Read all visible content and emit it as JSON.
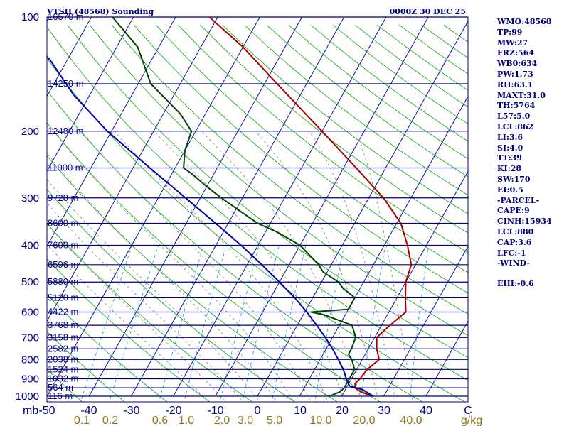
{
  "header": {
    "station": "VTSH (48568) Sounding",
    "time": "0000Z 30 DEC 25"
  },
  "indices": [
    "WMO:48568",
    "TP:99",
    "MW:27",
    "FRZ:564",
    "WB0:634",
    "PW:1.73",
    "RH:63.1",
    "MAXT:31.0",
    "TH:5764",
    "L57:5.0",
    "LCL:862",
    "LI:3.6",
    "SI:4.0",
    "TT:39",
    "KI:28",
    "SW:170",
    "EI:0.5",
    "-PARCEL-",
    "CAPE:9",
    "CINH:15934",
    "LCL:880",
    "CAP:3.6",
    "LFC:-1",
    "-WIND-",
    "",
    "EHI:-0.6"
  ],
  "chart_data": {
    "type": "skew-t",
    "pressure_unit": "mb",
    "pressure_range": [
      1000,
      100
    ],
    "temperature_range": [
      -50,
      50
    ],
    "pressure_levels": [
      {
        "p": 100,
        "label": "100",
        "height": "16570 m"
      },
      {
        "p": 150,
        "label": "",
        "height": "14250 m"
      },
      {
        "p": 200,
        "label": "200",
        "height": "12480 m"
      },
      {
        "p": 250,
        "label": "",
        "height": "11000 m"
      },
      {
        "p": 300,
        "label": "300",
        "height": "9720 m"
      },
      {
        "p": 350,
        "label": "",
        "height": "8600 m"
      },
      {
        "p": 400,
        "label": "400",
        "height": "7600 m"
      },
      {
        "p": 450,
        "label": "",
        "height": "6596 m"
      },
      {
        "p": 500,
        "label": "500",
        "height": "5880 m"
      },
      {
        "p": 550,
        "label": "",
        "height": "5120 m"
      },
      {
        "p": 600,
        "label": "600",
        "height": "4422 m"
      },
      {
        "p": 650,
        "label": "",
        "height": "3768 m"
      },
      {
        "p": 700,
        "label": "700",
        "height": "3158 m"
      },
      {
        "p": 750,
        "label": "",
        "height": "2582 m"
      },
      {
        "p": 800,
        "label": "800",
        "height": "2038 m"
      },
      {
        "p": 850,
        "label": "",
        "height": "1524 m"
      },
      {
        "p": 900,
        "label": "900",
        "height": "1032 m"
      },
      {
        "p": 950,
        "label": "",
        "height": "564 m"
      },
      {
        "p": 1000,
        "label": "1000",
        "height": "116 m"
      }
    ],
    "x_axis_label": "mb",
    "temperature_ticks": [
      "-50",
      "-40",
      "-30",
      "-20",
      "-10",
      "0",
      "10",
      "20",
      "30",
      "40",
      "C"
    ],
    "mixing_ratio_ticks": [
      "0.1",
      "0.2",
      "0.6",
      "1.0",
      "2.0",
      "3.0",
      "5.0",
      "10.0",
      "20.0",
      "40.0",
      "g/kg"
    ],
    "series": [
      {
        "name": "temperature",
        "color": "#aa0000",
        "points": [
          [
            1000,
            27.5
          ],
          [
            975,
            24
          ],
          [
            950,
            22
          ],
          [
            925,
            21.5
          ],
          [
            900,
            22
          ],
          [
            850,
            22.5
          ],
          [
            800,
            24
          ],
          [
            750,
            22
          ],
          [
            700,
            20.5
          ],
          [
            650,
            22
          ],
          [
            600,
            24
          ],
          [
            550,
            22
          ],
          [
            500,
            20
          ],
          [
            450,
            19
          ],
          [
            400,
            15.5
          ],
          [
            350,
            11
          ],
          [
            300,
            3.5
          ],
          [
            250,
            -7
          ],
          [
            200,
            -20
          ],
          [
            150,
            -37
          ],
          [
            120,
            -50
          ],
          [
            100,
            -62
          ]
        ]
      },
      {
        "name": "dewpoint",
        "color": "#004400",
        "points": [
          [
            1000,
            17
          ],
          [
            975,
            19
          ],
          [
            950,
            19.5
          ],
          [
            900,
            19.5
          ],
          [
            850,
            19.5
          ],
          [
            800,
            17.5
          ],
          [
            775,
            16
          ],
          [
            750,
            16
          ],
          [
            700,
            15.5
          ],
          [
            650,
            13
          ],
          [
            610,
            5
          ],
          [
            600,
            1.5
          ],
          [
            590,
            10
          ],
          [
            550,
            10
          ],
          [
            520,
            6
          ],
          [
            500,
            4
          ],
          [
            470,
            -1
          ],
          [
            450,
            -3
          ],
          [
            400,
            -10
          ],
          [
            370,
            -17
          ],
          [
            350,
            -23
          ],
          [
            320,
            -30
          ],
          [
            300,
            -35
          ],
          [
            280,
            -40
          ],
          [
            260,
            -45
          ],
          [
            250,
            -48
          ],
          [
            225,
            -50
          ],
          [
            200,
            -51
          ],
          [
            180,
            -56
          ],
          [
            150,
            -67
          ],
          [
            120,
            -75
          ],
          [
            100,
            -85
          ]
        ]
      },
      {
        "name": "parcel",
        "color": "#0000aa",
        "points": [
          [
            1000,
            27.5
          ],
          [
            960,
            24
          ],
          [
            940,
            20.5
          ],
          [
            900,
            18.8
          ],
          [
            850,
            16.8
          ],
          [
            800,
            14.3
          ],
          [
            750,
            11.5
          ],
          [
            700,
            8.3
          ],
          [
            650,
            4.6
          ],
          [
            600,
            0.5
          ],
          [
            550,
            -4.3
          ],
          [
            500,
            -10
          ],
          [
            450,
            -16.5
          ],
          [
            400,
            -24
          ],
          [
            350,
            -33
          ],
          [
            300,
            -43.5
          ],
          [
            250,
            -56
          ],
          [
            200,
            -71
          ],
          [
            160,
            -84
          ],
          [
            130,
            -94
          ],
          [
            115,
            -101
          ]
        ]
      }
    ]
  }
}
